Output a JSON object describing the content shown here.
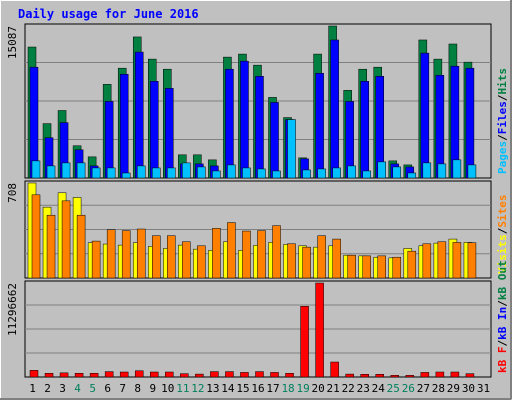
{
  "chart_data": {
    "type": "bar",
    "title": "Daily usage for June 2016",
    "categories": [
      "1",
      "2",
      "3",
      "4",
      "5",
      "6",
      "7",
      "8",
      "9",
      "10",
      "11",
      "12",
      "13",
      "14",
      "15",
      "16",
      "17",
      "18",
      "19",
      "20",
      "21",
      "22",
      "23",
      "24",
      "25",
      "26",
      "27",
      "28",
      "29",
      "30",
      "31"
    ],
    "weekend_days": [
      "4",
      "5",
      "11",
      "12",
      "18",
      "19",
      "25",
      "26"
    ],
    "panels": [
      {
        "id": "hits",
        "ymax_label": "15087",
        "ylim": [
          0,
          15087
        ],
        "legend": [
          "Pages",
          "Files",
          "Hits"
        ],
        "legend_separator": "/",
        "series": [
          {
            "name": "Hits",
            "color": "#008040",
            "values": [
              13000,
              5400,
              6700,
              3200,
              2100,
              9300,
              10900,
              14000,
              11800,
              10800,
              2300,
              2300,
              1800,
              12000,
              12300,
              11200,
              8000,
              6000,
              2000,
              12300,
              15087,
              8700,
              10800,
              11000,
              1700,
              1300,
              13700,
              11800,
              13300,
              11500
            ]
          },
          {
            "name": "Files",
            "color": "#0000ff",
            "values": [
              11000,
              4000,
              5500,
              2800,
              1200,
              7600,
              10300,
              12500,
              9600,
              8900,
              1400,
              1400,
              1200,
              10800,
              11600,
              10100,
              7500,
              5800,
              1900,
              10400,
              13700,
              7600,
              9600,
              10100,
              1400,
              1100,
              12400,
              10200,
              11100,
              10900
            ]
          },
          {
            "name": "Pages",
            "color": "#00c0ff",
            "values": [
              1700,
              1200,
              1500,
              1500,
              1000,
              1000,
              500,
              1200,
              1000,
              1000,
              1500,
              1100,
              700,
              1300,
              1000,
              900,
              700,
              5800,
              800,
              900,
              1000,
              1200,
              700,
              1600,
              1100,
              500,
              1500,
              1400,
              1800,
              1300
            ]
          }
        ]
      },
      {
        "id": "visits",
        "ymax_label": "708",
        "ylim": [
          0,
          708
        ],
        "legend": [
          "Visits",
          "Sites"
        ],
        "legend_separator": "/",
        "series": [
          {
            "name": "Visits",
            "color": "#ffff00",
            "values": [
              708,
              528,
              635,
              600,
              263,
              253,
              245,
              263,
              235,
              220,
              245,
              215,
              205,
              270,
              205,
              243,
              265,
              250,
              240,
              230,
              240,
              170,
              165,
              155,
              150,
              220,
              240,
              260,
              290,
              265
            ]
          },
          {
            "name": "Sites",
            "color": "#ff8000",
            "values": [
              620,
              468,
              575,
              468,
              275,
              360,
              353,
              365,
              315,
              315,
              270,
              240,
              370,
              413,
              350,
              353,
              390,
              255,
              230,
              315,
              290,
              170,
              165,
              165,
              155,
              200,
              255,
              270,
              265,
              263
            ]
          }
        ]
      },
      {
        "id": "kbytes",
        "ymax_label": "11296662",
        "ylim": [
          0,
          11296662
        ],
        "legend": [
          "kB F",
          "kB In",
          "kB Out"
        ],
        "legend_separator": "/",
        "series": [
          {
            "name": "kB F",
            "color": "#ff0000",
            "values": [
              800000,
              450000,
              500000,
              450000,
              450000,
              650000,
              600000,
              750000,
              600000,
              600000,
              400000,
              350000,
              650000,
              650000,
              550000,
              650000,
              550000,
              450000,
              8500000,
              11296662,
              1800000,
              350000,
              330000,
              330000,
              200000,
              200000,
              550000,
              600000,
              600000,
              400000
            ]
          }
        ]
      }
    ]
  },
  "colors": {
    "background": "#c0c0c0",
    "border": "#000000",
    "grid": "#808080",
    "title": "#0000ff",
    "axis_label": "#000000",
    "day_label": "#000000",
    "weekend_label": "#00805c",
    "legend_separator": "#000000"
  }
}
